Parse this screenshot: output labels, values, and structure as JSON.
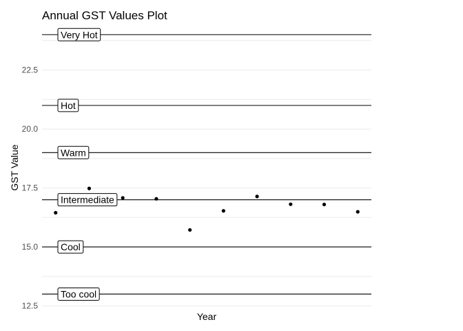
{
  "chart_data": {
    "type": "scatter",
    "title": "Annual GST Values Plot",
    "xlabel": "Year",
    "ylabel": "GST Value",
    "ylim": [
      12.4,
      24.3
    ],
    "y_ticks": [
      12.5,
      15.0,
      17.5,
      20.0,
      22.5
    ],
    "y_tick_labels": [
      "12.5",
      "15.0",
      "17.5",
      "20.0",
      "22.5"
    ],
    "grid": true,
    "x_ticks_shown": false,
    "points": [
      {
        "x": 1,
        "y": 16.45
      },
      {
        "x": 2,
        "y": 17.48
      },
      {
        "x": 3,
        "y": 17.08
      },
      {
        "x": 4,
        "y": 17.04
      },
      {
        "x": 5,
        "y": 15.72
      },
      {
        "x": 6,
        "y": 16.53
      },
      {
        "x": 7,
        "y": 17.14
      },
      {
        "x": 8,
        "y": 16.81
      },
      {
        "x": 9,
        "y": 16.8
      },
      {
        "x": 10,
        "y": 16.49
      }
    ],
    "thresholds": [
      {
        "y": 13.0,
        "label": "Too cool"
      },
      {
        "y": 15.0,
        "label": "Cool"
      },
      {
        "y": 17.0,
        "label": "Intermediate"
      },
      {
        "y": 19.0,
        "label": "Warm"
      },
      {
        "y": 21.0,
        "label": "Hot"
      },
      {
        "y": 24.0,
        "label": "Very Hot"
      }
    ]
  }
}
